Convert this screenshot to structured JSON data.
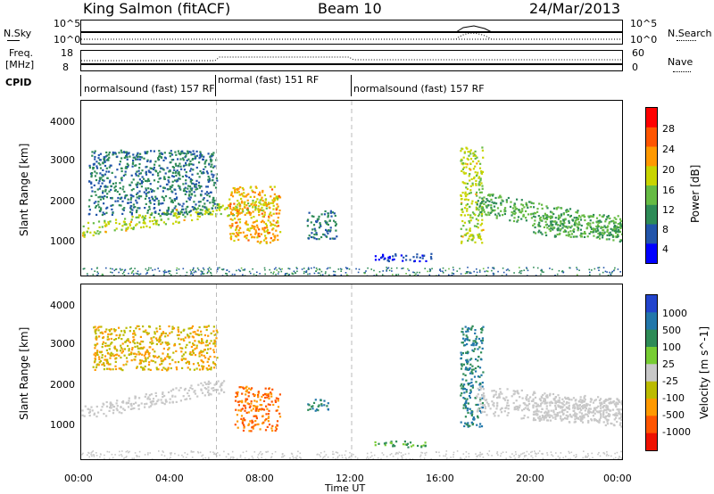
{
  "header": {
    "station": "King Salmon (fitACF)",
    "beam": "Beam 10",
    "date": "24/Mar/2013"
  },
  "top_panels": {
    "nsky_label": "N.Sky",
    "nsky_ticks": [
      "10^5",
      "10^0"
    ],
    "nsearch_label": "N.Search",
    "nsearch_ticks": [
      "10^5",
      "10^0"
    ],
    "freq_label_1": "Freq.",
    "freq_label_2": "[MHz]",
    "freq_ticks": [
      "18",
      "8"
    ],
    "nave_label": "Nave",
    "nave_ticks": [
      "60",
      "0"
    ],
    "cpid_label": "CPID",
    "cpid_segments": [
      {
        "label": "normalsound (fast) 157 RF",
        "start_h": 0,
        "end_h": 6
      },
      {
        "label": "normal (fast) 151 RF",
        "start_h": 6,
        "end_h": 12
      },
      {
        "label": "normalsound (fast) 157 RF",
        "start_h": 12,
        "end_h": 24
      }
    ]
  },
  "chart_data": [
    {
      "type": "heatmap",
      "quantity": "Power",
      "ylabel": "Slant Range [km]",
      "xlabel": "Time UT",
      "xlim": [
        0,
        24
      ],
      "ylim": [
        180,
        4500
      ],
      "yticks": [
        "1000",
        "2000",
        "3000",
        "4000"
      ],
      "colorbar_title": "Power [dB]",
      "colorbar_ticks": [
        "4",
        "8",
        "12",
        "16",
        "20",
        "24",
        "28"
      ],
      "colorbar_range": [
        0,
        30
      ],
      "colorbar_colors": [
        "#0000ff",
        "#2255aa",
        "#2e8b57",
        "#66bb44",
        "#c8d400",
        "#ff9900",
        "#ff5500",
        "#ff0000"
      ],
      "regions": [
        {
          "t0": 0.0,
          "t1": 8.7,
          "r0": 1150,
          "r1": 1500,
          "drift": 700,
          "level": 16
        },
        {
          "t0": 0.3,
          "t1": 6.0,
          "r0": 1700,
          "r1": 3300,
          "drift": 0,
          "level": 8
        },
        {
          "t0": 6.5,
          "t1": 8.8,
          "r0": 1000,
          "r1": 2400,
          "drift": 0,
          "level": 20
        },
        {
          "t0": 10.0,
          "t1": 11.3,
          "r0": 1100,
          "r1": 1800,
          "drift": 0,
          "level": 8
        },
        {
          "t0": 13.0,
          "t1": 15.5,
          "r0": 550,
          "r1": 750,
          "drift": 0,
          "level": 4
        },
        {
          "t0": 16.8,
          "t1": 17.8,
          "r0": 1000,
          "r1": 3400,
          "drift": 0,
          "level": 16
        },
        {
          "t0": 17.5,
          "t1": 24.0,
          "r0": 1700,
          "r1": 2300,
          "drift": -700,
          "level": 12
        },
        {
          "t0": 20.0,
          "t1": 24.0,
          "r0": 1150,
          "r1": 1700,
          "drift": 0,
          "level": 12
        }
      ]
    },
    {
      "type": "heatmap",
      "quantity": "Velocity",
      "ylabel": "Slant Range [km]",
      "xlabel": "Time UT",
      "xlim": [
        0,
        24
      ],
      "ylim": [
        180,
        4500
      ],
      "yticks": [
        "1000",
        "2000",
        "3000",
        "4000"
      ],
      "colorbar_title": "Velocity [m s^-1]",
      "colorbar_ticks": [
        "1000",
        "500",
        "100",
        "25",
        "-25",
        "-100",
        "-500",
        "-1000"
      ],
      "colorbar_colors": [
        "#2244cc",
        "#2277aa",
        "#2e8b57",
        "#77cc33",
        "#c8c8c8",
        "#bbbb00",
        "#ff9900",
        "#ff5500",
        "#ee1100"
      ],
      "regions": [
        {
          "t0": 0.0,
          "t1": 6.3,
          "r0": 1150,
          "r1": 1500,
          "drift": 700,
          "level": 0
        },
        {
          "t0": 0.5,
          "t1": 6.0,
          "r0": 2400,
          "r1": 3500,
          "drift": 0,
          "level": -100
        },
        {
          "t0": 6.8,
          "t1": 8.8,
          "r0": 900,
          "r1": 2000,
          "drift": 0,
          "level": -500
        },
        {
          "t0": 10.0,
          "t1": 11.0,
          "r0": 1400,
          "r1": 1700,
          "drift": 0,
          "level": 500
        },
        {
          "t0": 13.0,
          "t1": 15.3,
          "r0": 500,
          "r1": 650,
          "drift": 0,
          "level": 100
        },
        {
          "t0": 16.8,
          "t1": 17.8,
          "r0": 1000,
          "r1": 3500,
          "drift": 0,
          "level": 500
        },
        {
          "t0": 17.5,
          "t1": 24.0,
          "r0": 1300,
          "r1": 2000,
          "drift": -300,
          "level": 0
        },
        {
          "t0": 20.0,
          "t1": 24.0,
          "r0": 1150,
          "r1": 1700,
          "drift": 0,
          "level": 0
        }
      ]
    }
  ],
  "x_axis": {
    "ticks": [
      "00:00",
      "04:00",
      "08:00",
      "12:00",
      "16:00",
      "20:00",
      "00:00"
    ],
    "label": "Time UT"
  }
}
